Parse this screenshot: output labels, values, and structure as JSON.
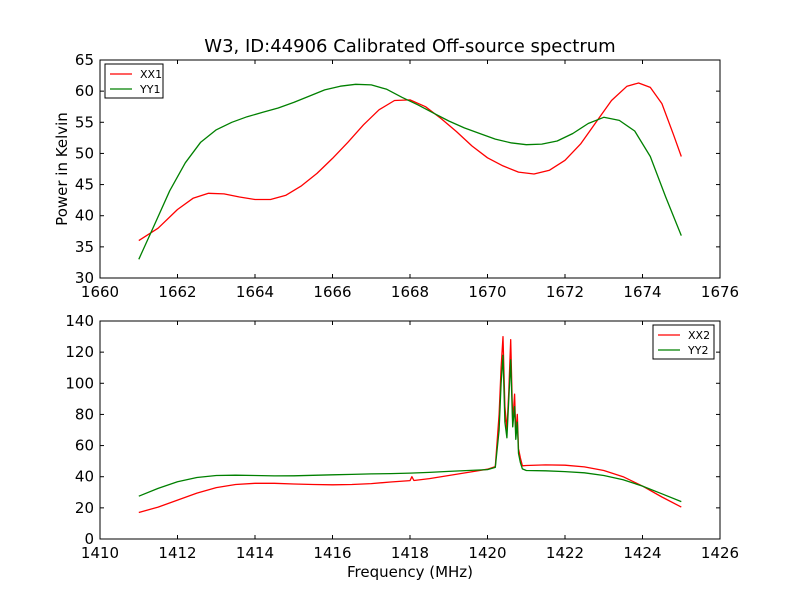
{
  "chart_data": [
    {
      "type": "line",
      "title": "W3, ID:44906 Calibrated Off-source spectrum",
      "xlabel": "",
      "ylabel": "Power in Kelvin",
      "xlim": [
        1660,
        1676
      ],
      "ylim": [
        30,
        65
      ],
      "xticks": [
        1660,
        1662,
        1664,
        1666,
        1668,
        1670,
        1672,
        1674,
        1676
      ],
      "yticks": [
        30,
        35,
        40,
        45,
        50,
        55,
        60,
        65
      ],
      "legend": "top-left",
      "series": [
        {
          "name": "XX1",
          "color": "#ff0000",
          "x": [
            1661.0,
            1661.5,
            1662.0,
            1662.4,
            1662.8,
            1663.2,
            1663.6,
            1664.0,
            1664.4,
            1664.8,
            1665.2,
            1665.6,
            1666.0,
            1666.4,
            1666.8,
            1667.2,
            1667.6,
            1668.0,
            1668.4,
            1668.8,
            1669.2,
            1669.6,
            1670.0,
            1670.4,
            1670.8,
            1671.2,
            1671.6,
            1672.0,
            1672.4,
            1672.8,
            1673.2,
            1673.6,
            1673.9,
            1674.2,
            1674.5,
            1674.8,
            1675.0
          ],
          "y": [
            36.0,
            38.0,
            41.0,
            42.8,
            43.6,
            43.5,
            43.0,
            42.6,
            42.6,
            43.3,
            44.8,
            46.8,
            49.2,
            51.8,
            54.6,
            57.0,
            58.5,
            58.6,
            57.5,
            55.6,
            53.5,
            51.2,
            49.3,
            48.0,
            47.0,
            46.7,
            47.3,
            48.9,
            51.5,
            55.0,
            58.5,
            60.8,
            61.3,
            60.6,
            58.0,
            53.0,
            49.5
          ]
        },
        {
          "name": "YY1",
          "color": "#008000",
          "x": [
            1661.0,
            1661.4,
            1661.8,
            1662.2,
            1662.6,
            1663.0,
            1663.4,
            1663.8,
            1664.2,
            1664.6,
            1665.0,
            1665.4,
            1665.8,
            1666.2,
            1666.6,
            1667.0,
            1667.4,
            1667.8,
            1668.2,
            1668.6,
            1669.0,
            1669.4,
            1669.8,
            1670.2,
            1670.6,
            1671.0,
            1671.4,
            1671.8,
            1672.2,
            1672.6,
            1673.0,
            1673.4,
            1673.8,
            1674.2,
            1674.6,
            1675.0
          ],
          "y": [
            33.0,
            38.5,
            44.0,
            48.5,
            51.8,
            53.8,
            55.0,
            55.9,
            56.6,
            57.3,
            58.2,
            59.2,
            60.2,
            60.8,
            61.1,
            61.0,
            60.3,
            59.0,
            57.8,
            56.5,
            55.2,
            54.1,
            53.2,
            52.3,
            51.7,
            51.4,
            51.5,
            52.0,
            53.2,
            54.8,
            55.8,
            55.3,
            53.6,
            49.5,
            43.0,
            36.8
          ]
        }
      ]
    },
    {
      "type": "line",
      "title": "",
      "xlabel": "Frequency (MHz)",
      "ylabel": "",
      "xlim": [
        1410,
        1426
      ],
      "ylim": [
        0,
        140
      ],
      "xticks": [
        1410,
        1412,
        1414,
        1416,
        1418,
        1420,
        1422,
        1424,
        1426
      ],
      "yticks": [
        0,
        20,
        40,
        60,
        80,
        100,
        120,
        140
      ],
      "legend": "top-right",
      "series": [
        {
          "name": "XX2",
          "color": "#ff0000",
          "x": [
            1411.0,
            1411.5,
            1412.0,
            1412.5,
            1413.0,
            1413.5,
            1414.0,
            1414.5,
            1415.0,
            1415.5,
            1416.0,
            1416.5,
            1417.0,
            1417.5,
            1418.0,
            1418.05,
            1418.1,
            1418.5,
            1419.0,
            1419.5,
            1420.0,
            1420.2,
            1420.3,
            1420.35,
            1420.4,
            1420.45,
            1420.5,
            1420.55,
            1420.6,
            1420.65,
            1420.7,
            1420.73,
            1420.77,
            1420.8,
            1420.85,
            1420.9,
            1421.0,
            1421.5,
            1422.0,
            1422.5,
            1423.0,
            1423.5,
            1424.0,
            1424.5,
            1425.0
          ],
          "y": [
            17.0,
            20.5,
            25.0,
            29.5,
            33.0,
            35.0,
            35.8,
            35.8,
            35.3,
            35.0,
            34.8,
            35.0,
            35.6,
            36.6,
            37.5,
            40.0,
            37.6,
            38.8,
            40.8,
            42.8,
            44.8,
            46.5,
            80.0,
            110.0,
            130.0,
            85.0,
            70.0,
            95.0,
            128.0,
            75.0,
            93.0,
            68.0,
            80.0,
            58.0,
            52.0,
            47.0,
            47.2,
            47.6,
            47.4,
            46.3,
            44.0,
            40.0,
            34.0,
            27.0,
            20.5
          ]
        },
        {
          "name": "YY2",
          "color": "#008000",
          "x": [
            1411.0,
            1411.5,
            1412.0,
            1412.5,
            1413.0,
            1413.5,
            1414.0,
            1414.5,
            1415.0,
            1415.5,
            1416.0,
            1416.5,
            1417.0,
            1417.5,
            1418.0,
            1418.5,
            1419.0,
            1419.5,
            1420.0,
            1420.2,
            1420.3,
            1420.35,
            1420.4,
            1420.45,
            1420.5,
            1420.55,
            1420.6,
            1420.65,
            1420.7,
            1420.73,
            1420.77,
            1420.8,
            1420.85,
            1420.9,
            1421.0,
            1421.5,
            1422.0,
            1422.5,
            1423.0,
            1423.5,
            1424.0,
            1424.5,
            1425.0
          ],
          "y": [
            27.5,
            32.5,
            36.8,
            39.5,
            40.8,
            41.0,
            40.8,
            40.5,
            40.6,
            40.9,
            41.2,
            41.5,
            41.8,
            42.0,
            42.3,
            42.8,
            43.4,
            44.0,
            44.6,
            46.0,
            70.0,
            100.0,
            118.0,
            75.0,
            65.0,
            90.0,
            115.0,
            72.0,
            85.0,
            64.0,
            75.0,
            55.0,
            49.0,
            45.0,
            44.0,
            43.8,
            43.3,
            42.5,
            40.8,
            38.0,
            34.0,
            29.0,
            24.0
          ]
        }
      ]
    }
  ]
}
